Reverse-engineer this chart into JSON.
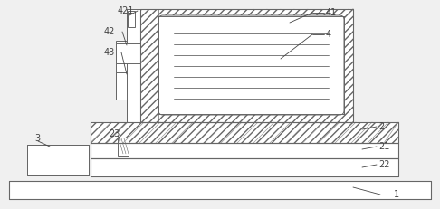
{
  "bg_color": "#f0f0f0",
  "line_color": "#666666",
  "hatch_color": "#999999",
  "label_color": "#444444",
  "figsize": [
    4.86,
    2.31
  ],
  "dpi": 100,
  "lw": 0.7
}
